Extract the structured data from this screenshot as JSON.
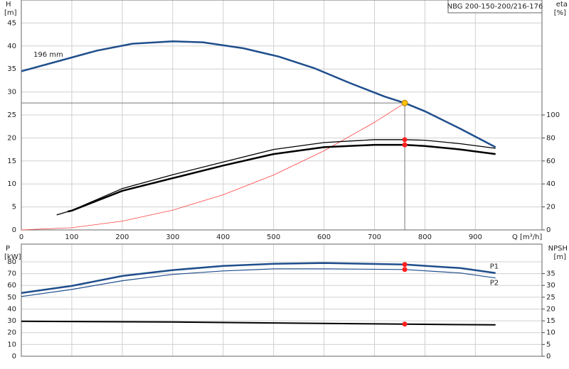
{
  "chart_data": [
    {
      "type": "line",
      "title": "NBG 200-150-200/216-176",
      "ylabel": "H",
      "yunit": "[m]",
      "y2label": "eta",
      "y2unit": "[%]",
      "xlabel": "Q [m³/h]",
      "annotation": "196 mm",
      "xlim": [
        0,
        1032
      ],
      "xticks": [
        0,
        100,
        200,
        300,
        400,
        500,
        600,
        700,
        800,
        900
      ],
      "ylim": [
        0,
        50
      ],
      "yticks": [
        0,
        5,
        10,
        15,
        20,
        25,
        30,
        35,
        40,
        45
      ],
      "y2lim": [
        0,
        200
      ],
      "y2ticks": [
        0,
        20,
        40,
        60,
        80,
        100
      ],
      "grid": true,
      "xtick_labels": true,
      "duty_point": {
        "x": 760,
        "y": 27.6,
        "color": "#ffc000"
      },
      "marker_x": 760,
      "series": [
        {
          "x": [
            0,
            100,
            150,
            220,
            300,
            360,
            440,
            510,
            580,
            650,
            720,
            760,
            800,
            870,
            940
          ],
          "values": [
            34.5,
            37.5,
            39,
            40.5,
            41,
            40.8,
            39.5,
            37.7,
            35.2,
            32,
            29,
            27.6,
            25.8,
            22,
            18
          ],
          "color": "#1f4e8c",
          "width": 2.5
        },
        {
          "x": [
            0,
            100,
            200,
            300,
            400,
            500,
            600,
            700,
            760
          ],
          "values": [
            0,
            0.48,
            1.91,
            4.3,
            7.64,
            11.94,
            17.2,
            23.4,
            27.6
          ],
          "color": "#ff4040",
          "width": 0.8
        },
        {
          "x": [
            70,
            100,
            200,
            300,
            400,
            500,
            600,
            700,
            760,
            800,
            870,
            940
          ],
          "values": [
            13,
            17,
            36,
            48,
            59,
            70,
            76,
            78.5,
            78.5,
            78,
            75,
            71
          ],
          "axis": "y2",
          "color": "#000000",
          "width": 1.3,
          "marker": "#ff2020"
        },
        {
          "x": [
            92,
            100,
            200,
            300,
            400,
            500,
            600,
            700,
            760,
            800,
            870,
            940
          ],
          "values": [
            16,
            16.8,
            34,
            45,
            56,
            66,
            72,
            74,
            74,
            73,
            70,
            66
          ],
          "axis": "y2",
          "color": "#000000",
          "width": 2.5,
          "marker": "#ff2020"
        }
      ]
    },
    {
      "type": "line",
      "ylabel": "P",
      "yunit": "[kW]",
      "y2label": "NPSH",
      "y2unit": "[m]",
      "xlim": [
        0,
        1032
      ],
      "xticks": [
        0,
        100,
        200,
        300,
        400,
        500,
        600,
        700,
        800,
        900
      ],
      "ylim": [
        0,
        95
      ],
      "yticks": [
        0,
        10,
        20,
        30,
        40,
        50,
        60,
        70,
        80
      ],
      "y2lim": [
        0,
        47.5
      ],
      "y2ticks": [
        0,
        5,
        10,
        15,
        20,
        25,
        30,
        35
      ],
      "grid": true,
      "xtick_labels": false,
      "marker_x": 760,
      "series": [
        {
          "name": "P1",
          "x": [
            0,
            100,
            200,
            300,
            400,
            500,
            600,
            760,
            870,
            940
          ],
          "values": [
            53.6,
            59.6,
            68,
            73,
            76.5,
            78.3,
            79,
            77.7,
            74.7,
            70.5
          ],
          "color": "#1f4e8c",
          "width": 2.5,
          "marker": "#ff2020",
          "label_pos": "above"
        },
        {
          "name": "P2",
          "x": [
            0,
            100,
            200,
            300,
            400,
            500,
            600,
            760,
            870,
            940
          ],
          "values": [
            50.6,
            56.6,
            64,
            69.3,
            72.3,
            74,
            74,
            73.5,
            70.5,
            66.3
          ],
          "color": "#1f4e8c",
          "width": 1.2,
          "marker": "#ff2020",
          "label_pos": "below"
        },
        {
          "x": [
            0,
            100,
            300,
            500,
            700,
            760,
            940
          ],
          "values": [
            14.8,
            14.7,
            14.5,
            14.1,
            13.7,
            13.6,
            13.3
          ],
          "axis": "y2",
          "color": "#000000",
          "width": 2,
          "marker": "#ff2020"
        }
      ]
    }
  ]
}
